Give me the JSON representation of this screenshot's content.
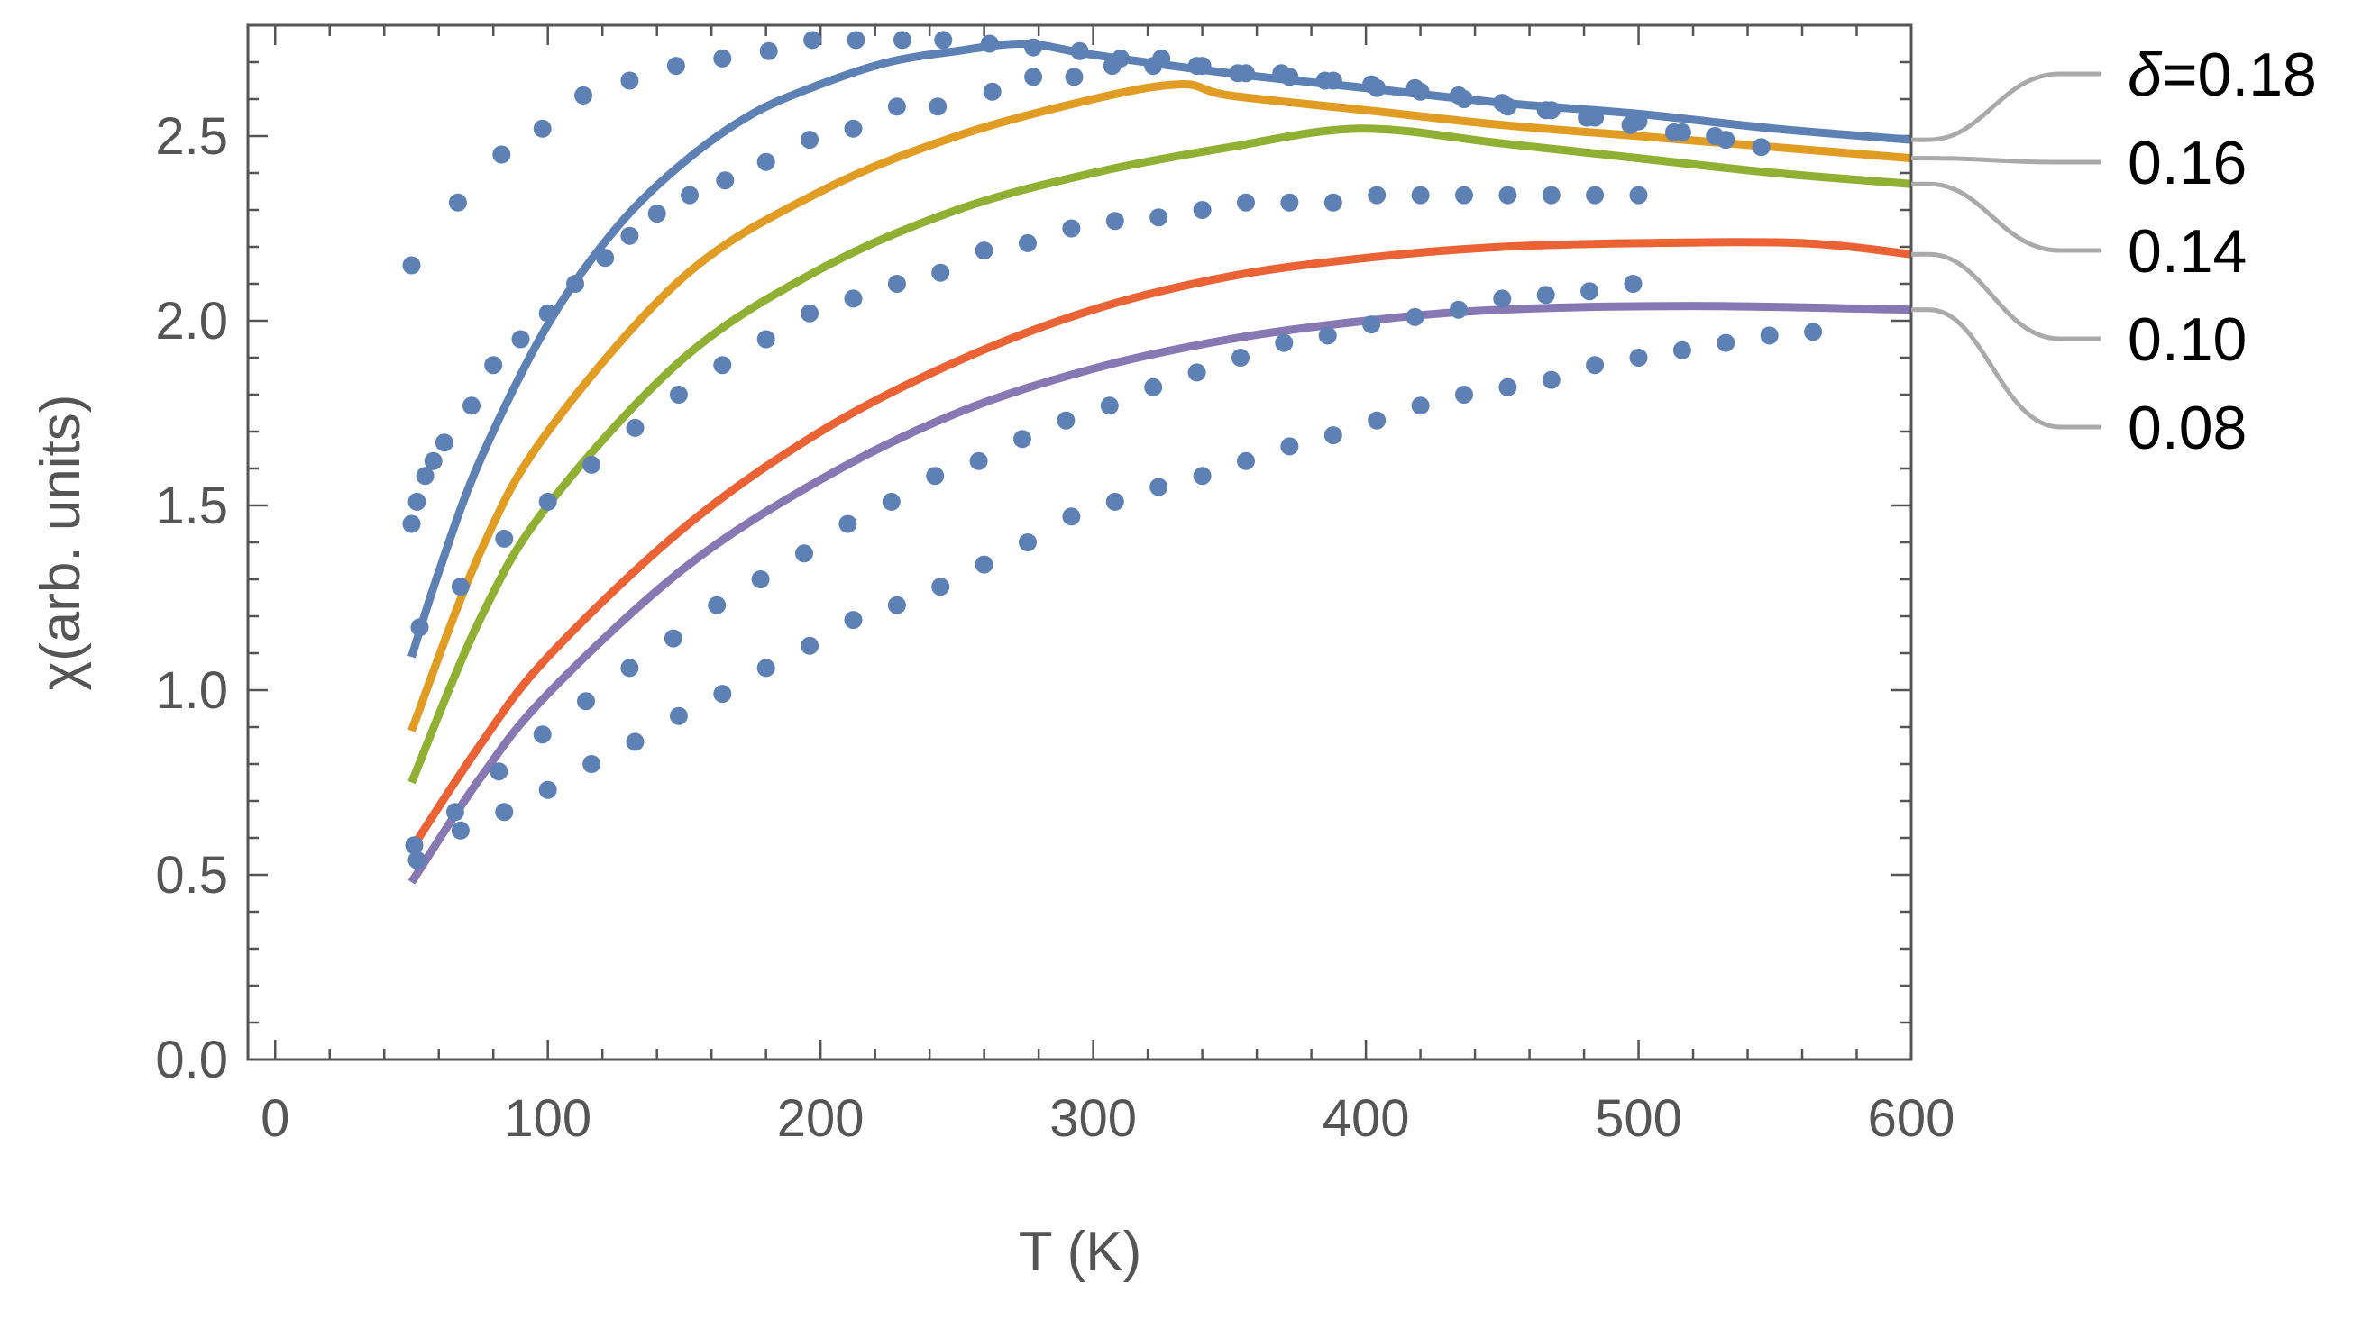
{
  "chart_data": {
    "type": "line",
    "title": "",
    "xlabel": "T (K)",
    "ylabel": "χ(arb. units)",
    "xlim": [
      -10,
      600
    ],
    "ylim": [
      0,
      2.8
    ],
    "xticks": [
      0,
      100,
      200,
      300,
      400,
      500,
      600
    ],
    "xtick_labels": [
      "0",
      "100",
      "200",
      "300",
      "400",
      "500",
      "600"
    ],
    "yticks": [
      0.0,
      0.5,
      1.0,
      1.5,
      2.0,
      2.5
    ],
    "ytick_labels": [
      "0.0",
      "0.5",
      "1.0",
      "1.5",
      "2.0",
      "2.5"
    ],
    "legend_prefix": "δ",
    "legend_position": "right, outside plot",
    "series": [
      {
        "name": "δ=0.18",
        "legend_label": "=0.18",
        "kind": "line",
        "color": "#5e81b5",
        "x": [
          50,
          60,
          75,
          100,
          125,
          150,
          175,
          200,
          225,
          250,
          275,
          300,
          350,
          400,
          450,
          500,
          550,
          600
        ],
        "y": [
          1.09,
          1.32,
          1.62,
          1.99,
          2.25,
          2.43,
          2.56,
          2.64,
          2.7,
          2.73,
          2.75,
          2.72,
          2.67,
          2.63,
          2.59,
          2.56,
          2.52,
          2.49
        ]
      },
      {
        "name": "δ=0.16",
        "legend_label": "0.16",
        "kind": "line",
        "color": "#e19c24",
        "x": [
          50,
          75,
          100,
          150,
          200,
          250,
          300,
          332,
          350,
          400,
          450,
          500,
          550,
          600
        ],
        "y": [
          0.89,
          1.37,
          1.7,
          2.12,
          2.35,
          2.5,
          2.6,
          2.64,
          2.61,
          2.57,
          2.53,
          2.5,
          2.47,
          2.44
        ]
      },
      {
        "name": "δ=0.14",
        "legend_label": "0.14",
        "kind": "line",
        "color": "#8fb032",
        "x": [
          50,
          75,
          100,
          150,
          200,
          250,
          300,
          350,
          398,
          450,
          500,
          550,
          600
        ],
        "y": [
          0.75,
          1.19,
          1.5,
          1.9,
          2.14,
          2.3,
          2.4,
          2.47,
          2.52,
          2.48,
          2.44,
          2.4,
          2.37
        ]
      },
      {
        "name": "δ=0.10",
        "legend_label": "0.10",
        "kind": "line",
        "color": "#eb6235",
        "x": [
          50,
          75,
          100,
          150,
          200,
          250,
          300,
          350,
          400,
          450,
          500,
          560,
          600
        ],
        "y": [
          0.57,
          0.85,
          1.09,
          1.44,
          1.7,
          1.89,
          2.03,
          2.12,
          2.17,
          2.2,
          2.21,
          2.21,
          2.18
        ]
      },
      {
        "name": "δ=0.08",
        "legend_label": "0.08",
        "kind": "line",
        "color": "#8778b3",
        "x": [
          50,
          75,
          100,
          150,
          200,
          250,
          300,
          350,
          400,
          450,
          520,
          600
        ],
        "y": [
          0.48,
          0.76,
          0.99,
          1.33,
          1.57,
          1.75,
          1.87,
          1.95,
          2.0,
          2.03,
          2.04,
          2.03
        ]
      },
      {
        "name": "data δ=0.18",
        "kind": "points",
        "color": "#5e81b5",
        "x": [
          50,
          67,
          83,
          98,
          113,
          130,
          147,
          164,
          181,
          197,
          213,
          230,
          245,
          262,
          278,
          295,
          310,
          325,
          340,
          356,
          372,
          388,
          404,
          420,
          436,
          452,
          468,
          484,
          500,
          516,
          532
        ],
        "y": [
          2.15,
          2.32,
          2.45,
          2.52,
          2.61,
          2.65,
          2.69,
          2.71,
          2.73,
          2.76,
          2.76,
          2.76,
          2.76,
          2.75,
          2.74,
          2.73,
          2.71,
          2.71,
          2.69,
          2.67,
          2.66,
          2.65,
          2.63,
          2.62,
          2.6,
          2.58,
          2.57,
          2.55,
          2.54,
          2.51,
          2.49
        ]
      },
      {
        "name": "data δ=0.16",
        "kind": "points",
        "color": "#5e81b5",
        "x": [
          50,
          52,
          55,
          58,
          62,
          72,
          80,
          90,
          100,
          110,
          121,
          130,
          140,
          152,
          165,
          180,
          196,
          212,
          228,
          243,
          263,
          278,
          293,
          307,
          322,
          338,
          353,
          369,
          385,
          402,
          418,
          434,
          450,
          466,
          481,
          497,
          513,
          528,
          545
        ],
        "y": [
          1.45,
          1.51,
          1.58,
          1.62,
          1.67,
          1.77,
          1.88,
          1.95,
          2.02,
          2.1,
          2.17,
          2.23,
          2.29,
          2.34,
          2.38,
          2.43,
          2.49,
          2.52,
          2.58,
          2.58,
          2.62,
          2.66,
          2.66,
          2.69,
          2.69,
          2.69,
          2.67,
          2.67,
          2.65,
          2.64,
          2.63,
          2.61,
          2.59,
          2.57,
          2.55,
          2.53,
          2.51,
          2.5,
          2.47
        ]
      },
      {
        "name": "data δ=0.14",
        "kind": "points",
        "color": "#5e81b5",
        "x": [
          53,
          68,
          84,
          100,
          116,
          132,
          148,
          164,
          180,
          196,
          212,
          228,
          244,
          260,
          276,
          292,
          308,
          324,
          340,
          356,
          372,
          388,
          404,
          420,
          436,
          452,
          468,
          484,
          500
        ],
        "y": [
          1.17,
          1.28,
          1.41,
          1.51,
          1.61,
          1.71,
          1.8,
          1.88,
          1.95,
          2.02,
          2.06,
          2.1,
          2.13,
          2.19,
          2.21,
          2.25,
          2.27,
          2.28,
          2.3,
          2.32,
          2.32,
          2.32,
          2.34,
          2.34,
          2.34,
          2.34,
          2.34,
          2.34,
          2.34
        ]
      },
      {
        "name": "data δ=0.10",
        "kind": "points",
        "color": "#5e81b5",
        "x": [
          51,
          66,
          82,
          98,
          114,
          130,
          146,
          162,
          178,
          194,
          210,
          226,
          242,
          258,
          274,
          290,
          306,
          322,
          338,
          354,
          370,
          386,
          402,
          418,
          434,
          450,
          466,
          482,
          498
        ],
        "y": [
          0.58,
          0.67,
          0.78,
          0.88,
          0.97,
          1.06,
          1.14,
          1.23,
          1.3,
          1.37,
          1.45,
          1.51,
          1.58,
          1.62,
          1.68,
          1.73,
          1.77,
          1.82,
          1.86,
          1.9,
          1.94,
          1.96,
          1.99,
          2.01,
          2.03,
          2.06,
          2.07,
          2.08,
          2.1
        ]
      },
      {
        "name": "data δ=0.08",
        "kind": "points",
        "color": "#5e81b5",
        "x": [
          52,
          68,
          84,
          100,
          116,
          132,
          148,
          164,
          180,
          196,
          212,
          228,
          244,
          260,
          276,
          292,
          308,
          324,
          340,
          356,
          372,
          388,
          404,
          420,
          436,
          452,
          468,
          484,
          500,
          516,
          532,
          548,
          564
        ],
        "y": [
          0.54,
          0.62,
          0.67,
          0.73,
          0.8,
          0.86,
          0.93,
          0.99,
          1.06,
          1.12,
          1.19,
          1.23,
          1.28,
          1.34,
          1.4,
          1.47,
          1.51,
          1.55,
          1.58,
          1.62,
          1.66,
          1.69,
          1.73,
          1.77,
          1.8,
          1.82,
          1.84,
          1.88,
          1.9,
          1.92,
          1.94,
          1.96,
          1.97
        ]
      }
    ]
  }
}
